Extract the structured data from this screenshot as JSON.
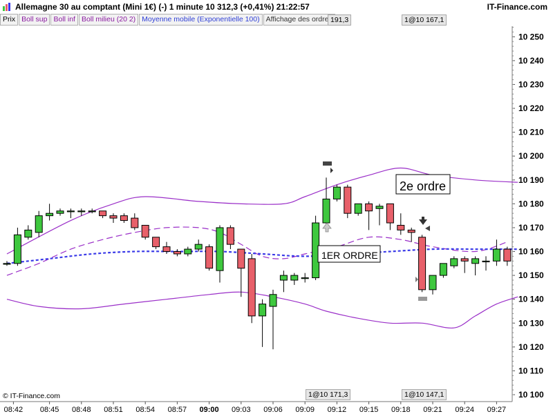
{
  "header": {
    "title": "Allemagne 30 au comptant (Mini 1€) (-)   1 minute   10 312,3 (+0,41%)   21:22:57",
    "brand": "IT-Finance.com"
  },
  "legend": {
    "items": [
      {
        "label": "Prix",
        "kind": "plain"
      },
      {
        "label": "Boll sup",
        "kind": "bb"
      },
      {
        "label": "Boll inf",
        "kind": "bb"
      },
      {
        "label": "Boll milieu (20 2)",
        "kind": "bb"
      },
      {
        "label": "Moyenne mobile (Exponentielle 100)",
        "kind": "ema"
      },
      {
        "label": "Affichage des ordres",
        "kind": "ord"
      }
    ],
    "tag_left": "191,3",
    "tag_right": "1@10 167,1"
  },
  "bottom_tags": {
    "left": "1@10 171,3",
    "right": "1@10 147,1"
  },
  "copyright": "© IT-Finance.com",
  "annotations": {
    "first": "1ER ORDRE",
    "second": "2e ordre"
  },
  "colors": {
    "up": "#3ec83e",
    "down": "#e8606a",
    "bollinger": "#9a2ec8",
    "ema": "#3a3ae8"
  },
  "chart_data": {
    "type": "candlestick",
    "ylim": [
      10100,
      10255
    ],
    "yticks": [
      "10 250",
      "10 240",
      "10 230",
      "10 220",
      "10 210",
      "10 200",
      "10 190",
      "10 180",
      "10 170",
      "10 160",
      "10 150",
      "10 140",
      "10 130",
      "10 120",
      "10 110",
      "10 100"
    ],
    "xticks": [
      "08:42",
      "08:45",
      "08:48",
      "08:51",
      "08:54",
      "08:57",
      "09:00",
      "09:03",
      "09:06",
      "09:09",
      "09:12",
      "09:15",
      "09:18",
      "09:21",
      "09:24",
      "09:27"
    ],
    "candles": [
      {
        "o": 10155,
        "h": 10156,
        "l": 10154,
        "c": 10155
      },
      {
        "o": 10155,
        "h": 10170,
        "l": 10154,
        "c": 10167
      },
      {
        "o": 10166,
        "h": 10171,
        "l": 10165,
        "c": 10169
      },
      {
        "o": 10168,
        "h": 10177,
        "l": 10166,
        "c": 10175
      },
      {
        "o": 10175,
        "h": 10180,
        "l": 10173,
        "c": 10176
      },
      {
        "o": 10176,
        "h": 10178,
        "l": 10175,
        "c": 10177
      },
      {
        "o": 10177,
        "h": 10178,
        "l": 10174,
        "c": 10177
      },
      {
        "o": 10177,
        "h": 10178,
        "l": 10175,
        "c": 10177
      },
      {
        "o": 10177,
        "h": 10178,
        "l": 10176,
        "c": 10177
      },
      {
        "o": 10177,
        "h": 10177,
        "l": 10174,
        "c": 10175
      },
      {
        "o": 10175,
        "h": 10176,
        "l": 10172,
        "c": 10174
      },
      {
        "o": 10175,
        "h": 10176,
        "l": 10172,
        "c": 10173
      },
      {
        "o": 10174,
        "h": 10176,
        "l": 10169,
        "c": 10170
      },
      {
        "o": 10171,
        "h": 10171,
        "l": 10165,
        "c": 10166
      },
      {
        "o": 10166,
        "h": 10166,
        "l": 10161,
        "c": 10162
      },
      {
        "o": 10162,
        "h": 10164,
        "l": 10159,
        "c": 10160
      },
      {
        "o": 10160,
        "h": 10161,
        "l": 10158,
        "c": 10159
      },
      {
        "o": 10159,
        "h": 10162,
        "l": 10158,
        "c": 10161
      },
      {
        "o": 10161,
        "h": 10165,
        "l": 10160,
        "c": 10163
      },
      {
        "o": 10162,
        "h": 10163,
        "l": 10152,
        "c": 10153
      },
      {
        "o": 10152,
        "h": 10171,
        "l": 10147,
        "c": 10170
      },
      {
        "o": 10170,
        "h": 10171,
        "l": 10161,
        "c": 10163
      },
      {
        "o": 10161,
        "h": 10161,
        "l": 10141,
        "c": 10153
      },
      {
        "o": 10157,
        "h": 10159,
        "l": 10130,
        "c": 10133
      },
      {
        "o": 10133,
        "h": 10140,
        "l": 10120,
        "c": 10138
      },
      {
        "o": 10137,
        "h": 10144,
        "l": 10119,
        "c": 10142
      },
      {
        "o": 10148,
        "h": 10152,
        "l": 10143,
        "c": 10150
      },
      {
        "o": 10148,
        "h": 10151,
        "l": 10146,
        "c": 10150
      },
      {
        "o": 10149,
        "h": 10151,
        "l": 10147,
        "c": 10149
      },
      {
        "o": 10149,
        "h": 10175,
        "l": 10148,
        "c": 10172
      },
      {
        "o": 10172,
        "h": 10191,
        "l": 10171,
        "c": 10182
      },
      {
        "o": 10182,
        "h": 10188,
        "l": 10181,
        "c": 10187
      },
      {
        "o": 10187,
        "h": 10188,
        "l": 10174,
        "c": 10176
      },
      {
        "o": 10176,
        "h": 10180,
        "l": 10175,
        "c": 10180
      },
      {
        "o": 10180,
        "h": 10181,
        "l": 10169,
        "c": 10177
      },
      {
        "o": 10178,
        "h": 10180,
        "l": 10171,
        "c": 10179
      },
      {
        "o": 10180,
        "h": 10180,
        "l": 10169,
        "c": 10172
      },
      {
        "o": 10171,
        "h": 10176,
        "l": 10167,
        "c": 10169
      },
      {
        "o": 10169,
        "h": 10170,
        "l": 10164,
        "c": 10168
      },
      {
        "o": 10166,
        "h": 10167,
        "l": 10143,
        "c": 10144
      },
      {
        "o": 10144,
        "h": 10149,
        "l": 10142,
        "c": 10150
      },
      {
        "o": 10150,
        "h": 10155,
        "l": 10149,
        "c": 10155
      },
      {
        "o": 10154,
        "h": 10158,
        "l": 10153,
        "c": 10157
      },
      {
        "o": 10157,
        "h": 10158,
        "l": 10151,
        "c": 10156
      },
      {
        "o": 10155,
        "h": 10158,
        "l": 10150,
        "c": 10157
      },
      {
        "o": 10156,
        "h": 10158,
        "l": 10152,
        "c": 10156
      },
      {
        "o": 10156,
        "h": 10165,
        "l": 10154,
        "c": 10161
      },
      {
        "o": 10161,
        "h": 10162,
        "l": 10154,
        "c": 10156
      }
    ],
    "boll_upper": [
      [
        0,
        10159
      ],
      [
        6,
        10173
      ],
      [
        10,
        10180
      ],
      [
        13,
        10183
      ],
      [
        18,
        10181
      ],
      [
        22,
        10180
      ],
      [
        26,
        10180
      ],
      [
        28,
        10183
      ],
      [
        31,
        10188
      ],
      [
        34,
        10192
      ],
      [
        37,
        10195
      ],
      [
        40,
        10192
      ],
      [
        44,
        10190
      ],
      [
        48,
        10189
      ]
    ],
    "boll_lower": [
      [
        0,
        10140
      ],
      [
        3,
        10137
      ],
      [
        7,
        10136
      ],
      [
        11,
        10138
      ],
      [
        15,
        10140
      ],
      [
        19,
        10142
      ],
      [
        22,
        10143
      ],
      [
        25,
        10141
      ],
      [
        28,
        10138
      ],
      [
        30,
        10135
      ],
      [
        33,
        10132
      ],
      [
        36,
        10130
      ],
      [
        39,
        10130
      ],
      [
        42,
        10128
      ],
      [
        44,
        10133
      ],
      [
        46,
        10138
      ],
      [
        48,
        10141
      ]
    ],
    "boll_middle": [
      [
        0,
        10150
      ],
      [
        3,
        10155
      ],
      [
        6,
        10161
      ],
      [
        9,
        10165
      ],
      [
        12,
        10168
      ],
      [
        15,
        10170
      ],
      [
        18,
        10170
      ],
      [
        20,
        10168
      ],
      [
        22,
        10163
      ],
      [
        24,
        10158
      ],
      [
        26,
        10157
      ],
      [
        28,
        10159
      ],
      [
        31,
        10162
      ],
      [
        34,
        10166
      ],
      [
        37,
        10165
      ],
      [
        40,
        10162
      ],
      [
        44,
        10160
      ],
      [
        47,
        10164
      ]
    ],
    "ema100": [
      [
        0,
        10155
      ],
      [
        4,
        10157
      ],
      [
        8,
        10159
      ],
      [
        12,
        10160
      ],
      [
        16,
        10160
      ],
      [
        20,
        10160
      ],
      [
        24,
        10159
      ],
      [
        28,
        10158
      ],
      [
        32,
        10159
      ],
      [
        36,
        10160
      ],
      [
        40,
        10161
      ],
      [
        44,
        10161
      ],
      [
        48,
        10161
      ]
    ]
  }
}
